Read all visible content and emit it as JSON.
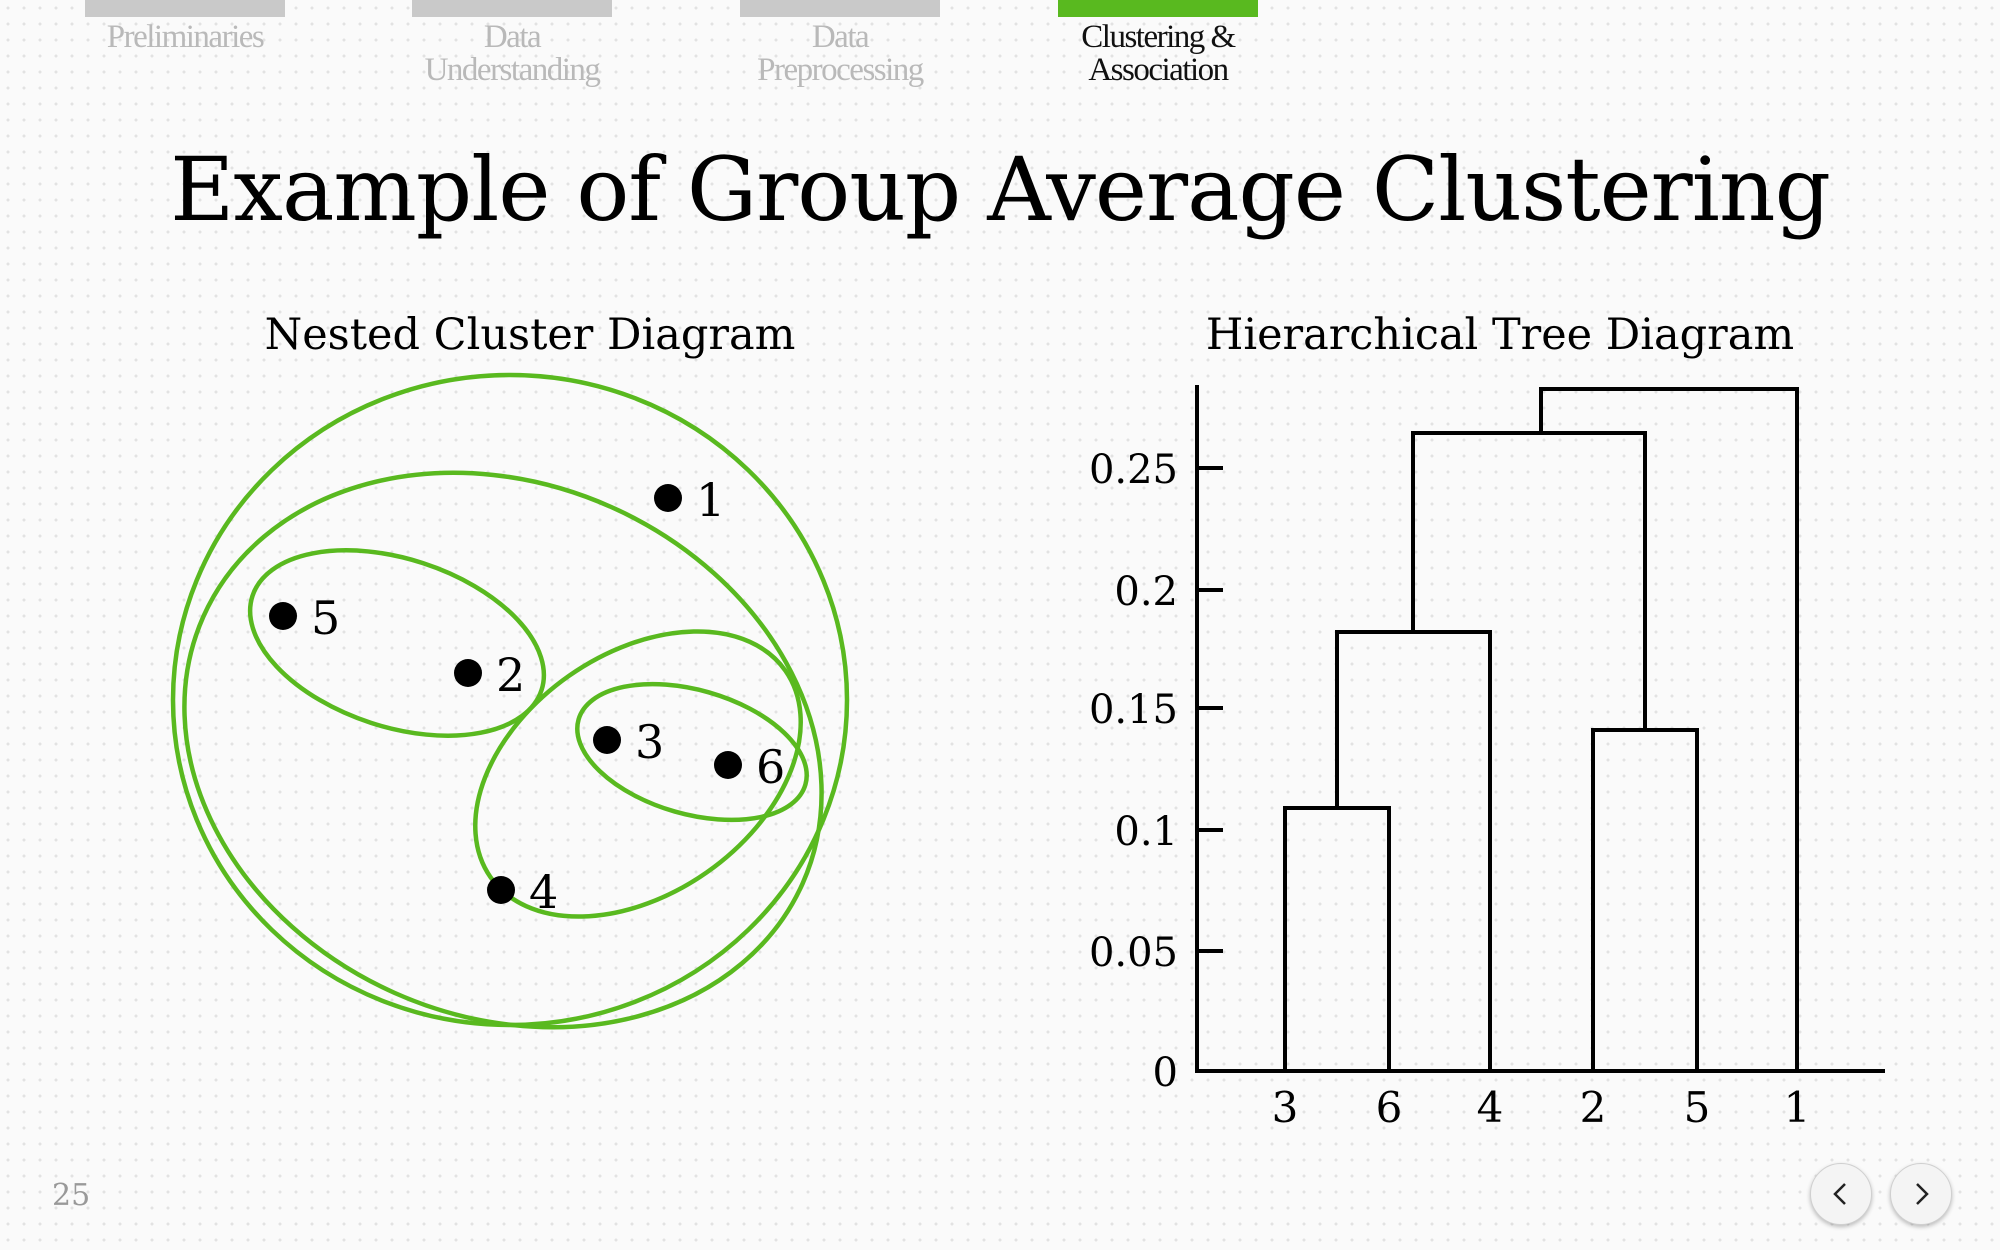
{
  "nav": {
    "items": [
      {
        "label": "Preliminaries"
      },
      {
        "label": "Data Understanding"
      },
      {
        "label": "Data Preprocessing"
      },
      {
        "label": "Clustering & Association"
      }
    ]
  },
  "slide": {
    "title": "Example of Group Average Clustering",
    "page_number": "25"
  },
  "nested_diagram": {
    "title": "Nested Cluster Diagram",
    "points": [
      {
        "label": "1"
      },
      {
        "label": "5"
      },
      {
        "label": "2"
      },
      {
        "label": "3"
      },
      {
        "label": "6"
      },
      {
        "label": "4"
      }
    ],
    "cluster_color": "#59b91f"
  },
  "tree_diagram": {
    "title": "Hierarchical Tree Diagram",
    "y_ticks": [
      "0",
      "0.05",
      "0.1",
      "0.15",
      "0.2",
      "0.25"
    ],
    "leaves": [
      "3",
      "6",
      "4",
      "2",
      "5",
      "1"
    ],
    "merges": [
      {
        "clusters": [
          "3",
          "6"
        ],
        "height": 0.11
      },
      {
        "clusters": [
          "2",
          "5"
        ],
        "height": 0.14
      },
      {
        "clusters": [
          "3,6",
          "4"
        ],
        "height": 0.18
      },
      {
        "clusters": [
          "3,6,4",
          "2,5"
        ],
        "height": 0.26
      },
      {
        "clusters": [
          "3,6,4,2,5",
          "1"
        ],
        "height": 0.28
      }
    ]
  },
  "controls": {
    "prev_icon": "chevron-left-icon",
    "next_icon": "chevron-right-icon"
  }
}
